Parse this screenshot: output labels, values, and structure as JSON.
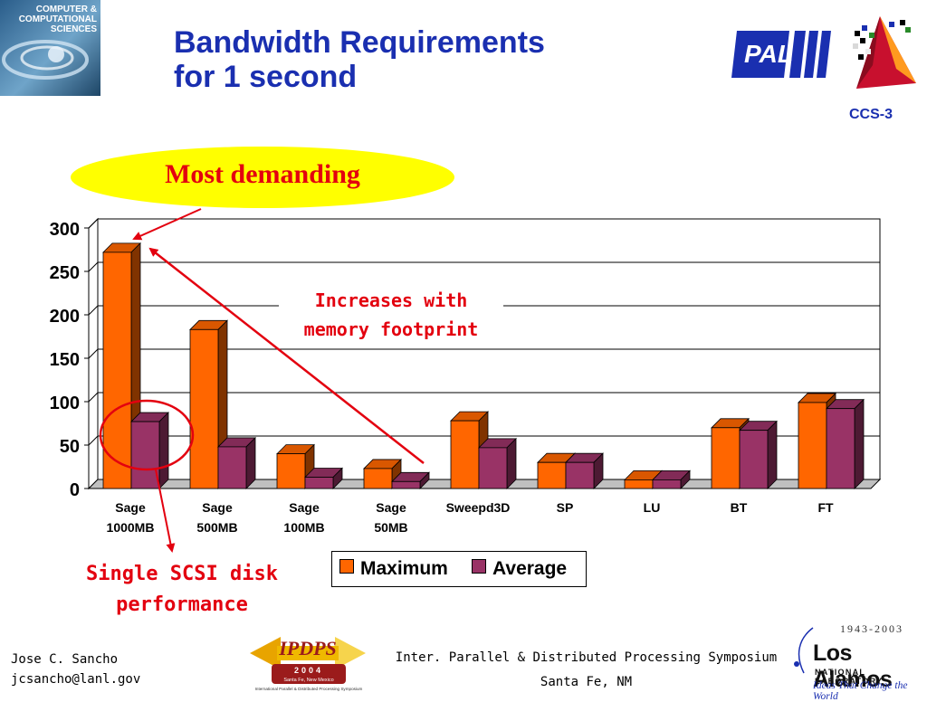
{
  "slide": {
    "title_line1": "Bandwidth Requirements",
    "title_line2": "for 1 second",
    "slide_code": "CCS-3",
    "callout_top": "Most demanding",
    "callout_middle_line1": "Increases with",
    "callout_middle_line2": "memory footprint",
    "callout_bottom_line1": "Single SCSI disk",
    "callout_bottom_line2": "performance",
    "author_name": "Jose C. Sancho",
    "author_email": "jcsancho@lanl.gov",
    "symposium_line1": "Inter. Parallel & Distributed Processing Symposium",
    "symposium_line2": "Santa Fe, NM"
  },
  "logos": {
    "ccs_logo_text": [
      "COMPUTER &",
      "COMPUTATIONAL",
      "SCIENCES"
    ],
    "pal_text": "PAL",
    "ipdps_text": "IPDPS",
    "ipdps_year": "2004",
    "ipdps_location": "Santa Fe, New Mexico",
    "ipdps_full": "International Parallel & Distributed Processing Symposium",
    "lanl_years": "1943-2003",
    "lanl_name": "Los Alamos",
    "lanl_sub": "NATIONAL LABORATORY",
    "lanl_tagline": "Ideas That Change the World"
  },
  "colors": {
    "title": "#1a2fb0",
    "accent_red": "#e3000f",
    "callout_fill": "#ffff00",
    "maximum": "#ff6600",
    "average": "#993366"
  },
  "chart_data": {
    "type": "bar",
    "variant": "3d-clustered",
    "categories": [
      [
        "Sage",
        "1000MB"
      ],
      [
        "Sage",
        "500MB"
      ],
      [
        "Sage",
        "100MB"
      ],
      [
        "Sage",
        "50MB"
      ],
      [
        "Sweepd3D"
      ],
      [
        "SP"
      ],
      [
        "LU"
      ],
      [
        "BT"
      ],
      [
        "FT"
      ]
    ],
    "series": [
      {
        "name": "Maximum",
        "color": "#ff6600",
        "values": [
          272,
          183,
          40,
          23,
          78,
          30,
          10,
          70,
          99
        ]
      },
      {
        "name": "Average",
        "color": "#993366",
        "values": [
          77,
          48,
          13,
          8,
          47,
          30,
          10,
          67,
          92
        ]
      }
    ],
    "ylim": [
      0,
      300
    ],
    "yticks": [
      0,
      50,
      100,
      150,
      200,
      250,
      300
    ],
    "grid": true,
    "legend": "bottom-center"
  }
}
